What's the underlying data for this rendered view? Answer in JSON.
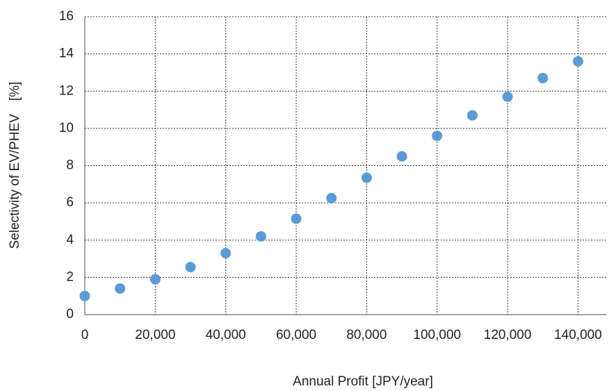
{
  "chart_data": {
    "type": "scatter",
    "x_label": "Annual Profit [JPY/year]",
    "y_label": "Selectivity of EV/PHEV　[%]",
    "x": [
      0,
      10000,
      20000,
      30000,
      40000,
      50000,
      60000,
      70000,
      80000,
      90000,
      100000,
      110000,
      120000,
      130000,
      140000
    ],
    "values": [
      1.0,
      1.4,
      1.9,
      2.55,
      3.3,
      4.2,
      5.15,
      6.25,
      7.35,
      8.5,
      9.6,
      10.7,
      11.7,
      12.7,
      13.6
    ],
    "color": "#5b9bd5",
    "xlim": [
      0,
      148000
    ],
    "ylim": [
      0,
      16
    ],
    "xticks": [
      0,
      {
        "value": 20000,
        "label": "20,000"
      },
      {
        "value": 40000,
        "label": "40,000"
      },
      {
        "value": 60000,
        "label": "60,000"
      },
      {
        "value": 80000,
        "label": "80,000"
      },
      {
        "value": 100000,
        "label": "100,000"
      },
      {
        "value": 120000,
        "label": "120,000"
      },
      {
        "value": 140000,
        "label": "140,000"
      }
    ],
    "yticks": [
      0,
      2,
      4,
      6,
      8,
      10,
      12,
      14,
      16
    ],
    "grid": true
  }
}
